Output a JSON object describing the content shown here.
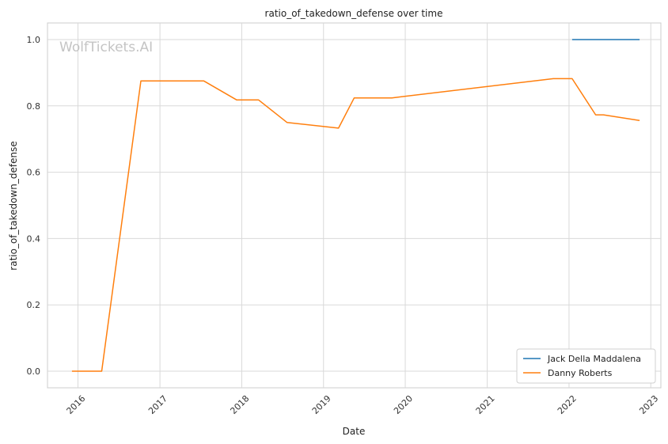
{
  "chart_data": {
    "type": "line",
    "title": "ratio_of_takedown_defense over time",
    "xlabel": "Date",
    "ylabel": "ratio_of_takedown_defense",
    "watermark": "WolfTickets.AI",
    "x_ticks": [
      "2016",
      "2017",
      "2018",
      "2019",
      "2020",
      "2021",
      "2022",
      "2023"
    ],
    "y_ticks": [
      "0.0",
      "0.2",
      "0.4",
      "0.6",
      "0.8",
      "1.0"
    ],
    "xlim": [
      "2015-08-18",
      "2023-02-15"
    ],
    "ylim": [
      -0.05,
      1.05
    ],
    "grid": true,
    "legend_position": "lower-right",
    "colors": {
      "Jack Della Maddalena": "#1f77b4",
      "Danny Roberts": "#ff7f0e"
    },
    "series": [
      {
        "name": "Jack Della Maddalena",
        "points": [
          [
            "2022-01-15",
            1.0
          ],
          [
            "2022-11-12",
            1.0
          ]
        ]
      },
      {
        "name": "Danny Roberts",
        "points": [
          [
            "2015-12-05",
            0.0
          ],
          [
            "2016-04-16",
            0.0
          ],
          [
            "2016-10-08",
            0.875
          ],
          [
            "2017-07-16",
            0.875
          ],
          [
            "2017-12-09",
            0.818
          ],
          [
            "2018-03-17",
            0.818
          ],
          [
            "2018-07-22",
            0.75
          ],
          [
            "2019-03-09",
            0.733
          ],
          [
            "2019-05-18",
            0.824
          ],
          [
            "2019-11-02",
            0.824
          ],
          [
            "2021-10-23",
            0.882
          ],
          [
            "2022-01-15",
            0.882
          ],
          [
            "2022-04-30",
            0.773
          ],
          [
            "2022-06-04",
            0.773
          ],
          [
            "2022-11-12",
            0.756
          ]
        ]
      }
    ]
  }
}
